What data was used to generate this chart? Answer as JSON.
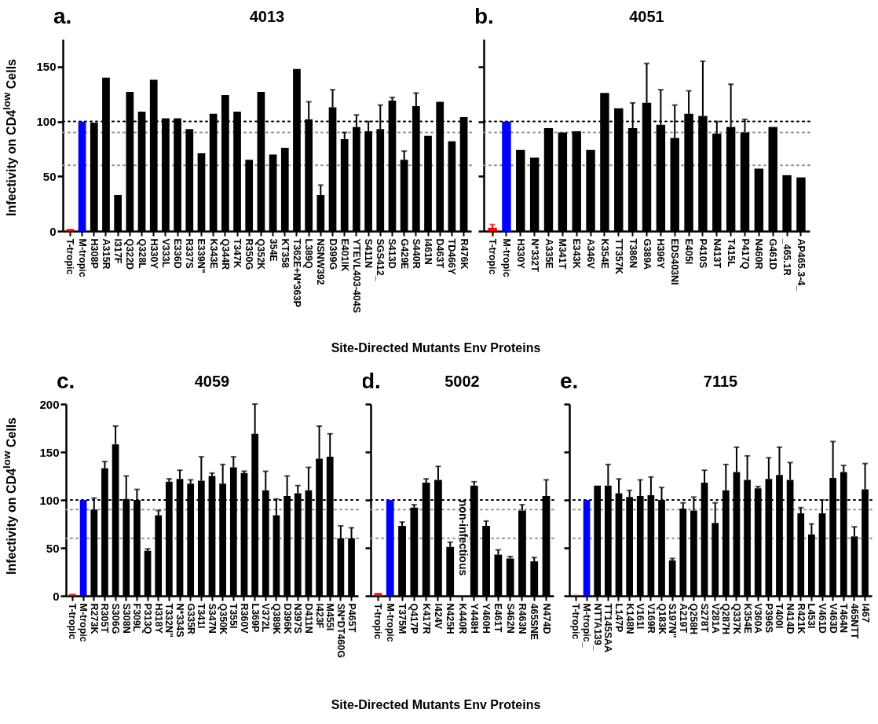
{
  "chart_data": [
    {
      "type": "bar",
      "title": "4013",
      "ylabel": "Infectivity on CD4$^{low}$ Cells",
      "xlabel": "Site-Directed Mutants Env Proteins",
      "annotations": [
        "a."
      ],
      "categories": [
        "T-tropic",
        "M-tropic",
        "H308P",
        "A315R",
        "I317F",
        "Q322D",
        "Q328L",
        "H330Y",
        "V333L",
        "E336D",
        "R337S",
        "E339N\"",
        "K343E",
        "Q344R",
        "T347K",
        "R350G",
        "Q352K",
        "354E",
        "KT358",
        "T362E+N*363P",
        "L389Q",
        "NSNW392",
        "D399G",
        "E401IK",
        "YTEVL403-404S",
        "S411N",
        "SGS412_",
        "S413D",
        "G429E",
        "S440R",
        "I461N",
        "D463T",
        "TD466Y",
        "R476K"
      ],
      "values": [
        2,
        100,
        99,
        140,
        33,
        127,
        109,
        138,
        103,
        103,
        93,
        71,
        107,
        124,
        109,
        65,
        127,
        70,
        76,
        148,
        102,
        33,
        113,
        84,
        95,
        91,
        93,
        119,
        65,
        114,
        87,
        118,
        82,
        104
      ],
      "errors": [
        null,
        null,
        null,
        null,
        null,
        null,
        null,
        null,
        null,
        null,
        null,
        null,
        null,
        null,
        null,
        null,
        null,
        null,
        null,
        null,
        [
          102,
          118
        ],
        [
          33,
          42
        ],
        [
          113,
          129
        ],
        [
          84,
          90
        ],
        [
          95,
          106
        ],
        [
          91,
          100
        ],
        [
          93,
          115
        ],
        [
          119,
          122
        ],
        [
          65,
          73
        ],
        [
          114,
          126
        ],
        null,
        null,
        null,
        null
      ],
      "colors": [
        "#ff0000",
        "#0000ff",
        "#000000",
        "#000000",
        "#000000",
        "#000000",
        "#000000",
        "#000000",
        "#000000",
        "#000000",
        "#000000",
        "#000000",
        "#000000",
        "#000000",
        "#000000",
        "#000000",
        "#000000",
        "#000000",
        "#000000",
        "#000000",
        "#000000",
        "#000000",
        "#000000",
        "#000000",
        "#000000",
        "#000000",
        "#000000",
        "#000000",
        "#000000",
        "#000000",
        "#000000",
        "#000000",
        "#000000",
        "#000000"
      ],
      "ylim": [
        0,
        175
      ],
      "yticks": [
        0,
        50,
        100,
        150
      ],
      "ref_lines": [
        {
          "axis": "y",
          "value": 100,
          "color": "#000000",
          "line_style": "dotted"
        },
        {
          "axis": "y",
          "value": 90,
          "color": "#909090",
          "line_style": "dotted"
        },
        {
          "axis": "y",
          "value": 60,
          "color": "#909090",
          "line_style": "dotted"
        }
      ]
    },
    {
      "type": "bar",
      "title": "4051",
      "annotations": [
        "b."
      ],
      "tick_labels": "x",
      "categories": [
        "T-tropic",
        "M-tropic",
        "H330Y",
        "N*332T",
        "A335E",
        "M341T",
        "E343K",
        "A346V",
        "K354E",
        "TT357K",
        "T386N",
        "G389A",
        "H396Y",
        "EDS403NI",
        "E405I",
        "P410S",
        "N413T",
        "T415L",
        "P417Q",
        "N460R",
        "G461D",
        "_465.1R",
        "AP465.3-4_"
      ],
      "values": [
        3,
        100,
        74,
        67,
        94,
        90,
        91,
        74,
        126,
        112,
        94,
        117,
        97,
        85,
        107,
        105,
        89,
        95,
        90,
        57,
        95,
        51,
        49
      ],
      "errors": [
        [
          3,
          6
        ],
        null,
        null,
        null,
        null,
        null,
        null,
        null,
        null,
        null,
        [
          94,
          117
        ],
        [
          117,
          153
        ],
        [
          97,
          129
        ],
        [
          85,
          115
        ],
        [
          107,
          128
        ],
        [
          105,
          155
        ],
        [
          89,
          100
        ],
        [
          95,
          134
        ],
        [
          90,
          102
        ],
        null,
        null,
        null,
        null
      ],
      "colors": [
        "#ff0000",
        "#0000ff",
        "#000000",
        "#000000",
        "#000000",
        "#000000",
        "#000000",
        "#000000",
        "#000000",
        "#000000",
        "#000000",
        "#000000",
        "#000000",
        "#000000",
        "#000000",
        "#000000",
        "#000000",
        "#000000",
        "#000000",
        "#000000",
        "#000000",
        "#000000",
        "#000000"
      ],
      "ylim": [
        0,
        175
      ],
      "yticks": [
        0,
        50,
        100,
        150
      ],
      "ref_lines": [
        {
          "axis": "y",
          "value": 100,
          "color": "#000000",
          "line_style": "dotted"
        },
        {
          "axis": "y",
          "value": 90,
          "color": "#909090",
          "line_style": "dotted"
        },
        {
          "axis": "y",
          "value": 60,
          "color": "#909090",
          "line_style": "dotted"
        }
      ]
    },
    {
      "type": "bar",
      "title": "4059",
      "ylabel": "Infectivity on CD4$^{low}$ Cells",
      "xlabel": "Site-Directed Mutants Env Proteins",
      "annotations": [
        "c."
      ],
      "categories": [
        "T-tropic",
        "M-tropic",
        "R273K",
        "R305T",
        "S306G",
        "S308N",
        "F309L",
        "P313Q",
        "H318Y",
        "T332N\"",
        "N*334S",
        "G335R",
        "T341I",
        "S347N",
        "Q350K",
        "T355I",
        "R360V",
        "L369P",
        "V372L",
        "Q389K",
        "D396K",
        "N397S",
        "D411N",
        "I423F",
        "M455I",
        "SN*DT460G",
        "P465T"
      ],
      "values": [
        2,
        100,
        90,
        133,
        158,
        101,
        100,
        47,
        84,
        119,
        122,
        117,
        120,
        125,
        117,
        134,
        128,
        169,
        110,
        84,
        104,
        107,
        110,
        143,
        145,
        60,
        60
      ],
      "errors": [
        null,
        null,
        [
          90,
          102
        ],
        [
          133,
          140
        ],
        [
          158,
          177
        ],
        [
          101,
          125
        ],
        [
          100,
          111
        ],
        [
          47,
          49
        ],
        [
          84,
          89
        ],
        [
          119,
          122
        ],
        [
          122,
          131
        ],
        [
          117,
          121
        ],
        [
          120,
          145
        ],
        [
          125,
          128
        ],
        [
          117,
          137
        ],
        [
          134,
          145
        ],
        [
          128,
          130
        ],
        [
          169,
          200
        ],
        [
          110,
          130
        ],
        [
          84,
          101
        ],
        [
          104,
          125
        ],
        [
          107,
          115
        ],
        [
          110,
          134
        ],
        [
          143,
          177
        ],
        [
          145,
          169
        ],
        [
          60,
          73
        ],
        [
          60,
          71
        ]
      ],
      "colors": [
        "#ff0000",
        "#0000ff",
        "#000000",
        "#000000",
        "#000000",
        "#000000",
        "#000000",
        "#000000",
        "#000000",
        "#000000",
        "#000000",
        "#000000",
        "#000000",
        "#000000",
        "#000000",
        "#000000",
        "#000000",
        "#000000",
        "#000000",
        "#000000",
        "#000000",
        "#000000",
        "#000000",
        "#000000",
        "#000000",
        "#000000",
        "#000000"
      ],
      "ylim": [
        0,
        200
      ],
      "yticks": [
        0,
        50,
        100,
        150,
        200
      ],
      "ref_lines": [
        {
          "axis": "y",
          "value": 100,
          "color": "#000000",
          "line_style": "dotted"
        },
        {
          "axis": "y",
          "value": 90,
          "color": "#909090",
          "line_style": "dotted"
        },
        {
          "axis": "y",
          "value": 60,
          "color": "#909090",
          "line_style": "dotted"
        }
      ]
    },
    {
      "type": "bar",
      "title": "5002",
      "annotations": [
        "d.",
        "non-infectious"
      ],
      "tick_labels": "x",
      "categories": [
        "T-tropic",
        "M-tropic",
        "T375M",
        "Q417P",
        "K417R",
        "I424V",
        "N425H",
        "K440R",
        "Y448H",
        "Y460H",
        "E461T",
        "S462N",
        "R463N",
        "465SNE",
        "N474D"
      ],
      "values": [
        3,
        100,
        73,
        92,
        118,
        121,
        51,
        null,
        115,
        73,
        43,
        39,
        89,
        36,
        104
      ],
      "errors": [
        null,
        null,
        [
          73,
          77
        ],
        [
          92,
          95
        ],
        [
          118,
          122
        ],
        [
          121,
          135
        ],
        [
          51,
          56
        ],
        null,
        [
          115,
          119
        ],
        [
          73,
          78
        ],
        [
          43,
          48
        ],
        [
          39,
          41
        ],
        [
          89,
          95
        ],
        [
          36,
          40
        ],
        [
          104,
          121
        ]
      ],
      "colors": [
        "#ff0000",
        "#0000ff",
        "#000000",
        "#000000",
        "#000000",
        "#000000",
        "#000000",
        "#000000",
        "#000000",
        "#000000",
        "#000000",
        "#000000",
        "#000000",
        "#000000",
        "#000000"
      ],
      "ylim": [
        0,
        200
      ],
      "yticks": [
        0,
        50,
        100,
        150,
        200
      ],
      "ref_lines": [
        {
          "axis": "y",
          "value": 100,
          "color": "#000000",
          "line_style": "dotted"
        },
        {
          "axis": "y",
          "value": 90,
          "color": "#909090",
          "line_style": "dotted"
        },
        {
          "axis": "y",
          "value": 60,
          "color": "#909090",
          "line_style": "dotted"
        }
      ]
    },
    {
      "type": "bar",
      "title": "7115",
      "annotations": [
        "e."
      ],
      "tick_labels": "x",
      "categories": [
        "T-tropic",
        "M-tropic_",
        "NTTA139_",
        "TT145SAA",
        "L147P",
        "K148N",
        "V161I",
        "V169R",
        "Q183K",
        "S197N\"",
        "A219T",
        "Q258H",
        "S278T",
        "V281A",
        "Q287H",
        "Q337K",
        "K354E",
        "V360A",
        "P396S",
        "T400I",
        "N414D",
        "R421K",
        "L453I",
        "V461D",
        "V463D",
        "T464N",
        "465NTT",
        "I467"
      ],
      "values": [
        1,
        100,
        115,
        115,
        107,
        103,
        104,
        105,
        100,
        37,
        91,
        89,
        118,
        76,
        110,
        129,
        121,
        112,
        122,
        126,
        121,
        86,
        64,
        86,
        123,
        129,
        62,
        111
      ],
      "errors": [
        null,
        null,
        null,
        [
          115,
          137
        ],
        [
          107,
          122
        ],
        [
          103,
          110
        ],
        [
          104,
          121
        ],
        [
          105,
          124
        ],
        [
          100,
          113
        ],
        [
          37,
          39
        ],
        [
          91,
          97
        ],
        [
          89,
          103
        ],
        [
          118,
          131
        ],
        [
          76,
          97
        ],
        [
          110,
          137
        ],
        [
          129,
          155
        ],
        [
          121,
          146
        ],
        [
          112,
          114
        ],
        [
          122,
          144
        ],
        [
          126,
          155
        ],
        [
          121,
          139
        ],
        [
          86,
          92
        ],
        [
          64,
          75
        ],
        [
          86,
          100
        ],
        [
          123,
          161
        ],
        [
          129,
          136
        ],
        [
          62,
          72
        ],
        [
          111,
          138
        ]
      ],
      "colors": [
        "#ff0000",
        "#0000ff",
        "#000000",
        "#000000",
        "#000000",
        "#000000",
        "#000000",
        "#000000",
        "#000000",
        "#000000",
        "#000000",
        "#000000",
        "#000000",
        "#000000",
        "#000000",
        "#000000",
        "#000000",
        "#000000",
        "#000000",
        "#000000",
        "#000000",
        "#000000",
        "#000000",
        "#000000",
        "#000000",
        "#000000",
        "#000000",
        "#000000"
      ],
      "ylim": [
        0,
        200
      ],
      "yticks": [
        0,
        50,
        100,
        150,
        200
      ],
      "ref_lines": [
        {
          "axis": "y",
          "value": 100,
          "color": "#000000",
          "line_style": "dotted"
        },
        {
          "axis": "y",
          "value": 90,
          "color": "#909090",
          "line_style": "dotted"
        },
        {
          "axis": "y",
          "value": 60,
          "color": "#909090",
          "line_style": "dotted"
        }
      ]
    }
  ]
}
